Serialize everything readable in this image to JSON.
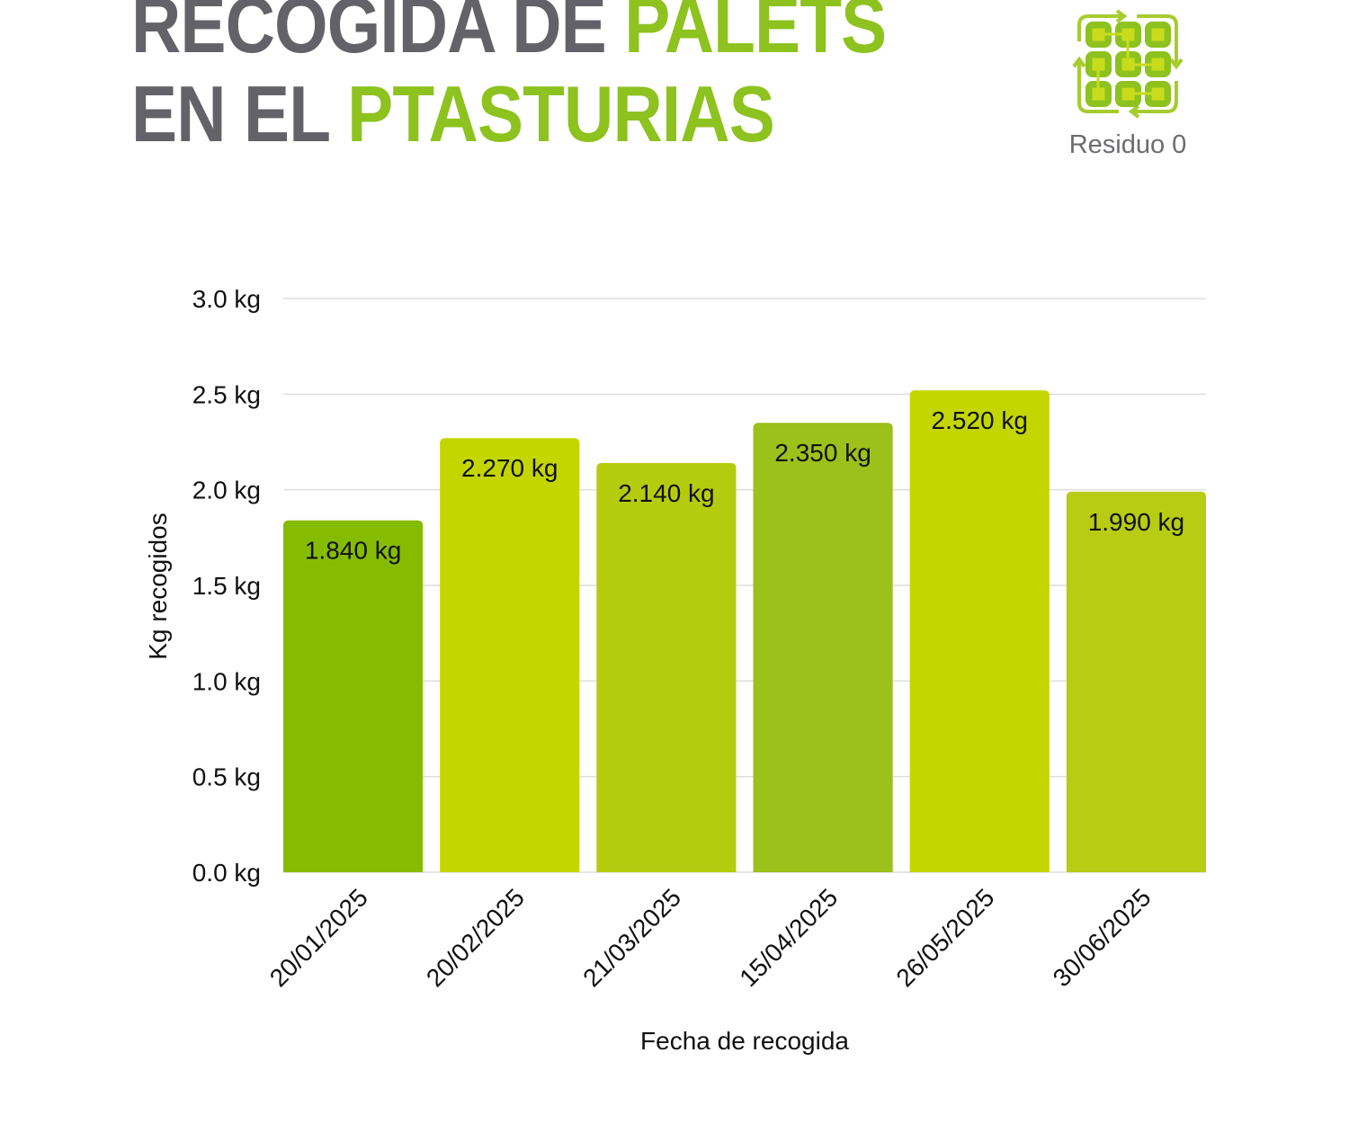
{
  "header": {
    "title_line1_gray": "RECOGIDA DE ",
    "title_line1_green": "PALETS",
    "title_line2_gray": "EN EL ",
    "title_line2_green": "PTASTURIAS",
    "logo_text": "Residuo 0"
  },
  "colors": {
    "gray": "#626268",
    "green": "#8dc21f",
    "bars": [
      "#86bc00",
      "#c4d600",
      "#b5cc0e",
      "#9cc11a",
      "#c4d600",
      "#b7cc12"
    ]
  },
  "chart_data": {
    "type": "bar",
    "categories": [
      "20/01/2025",
      "20/02/2025",
      "21/03/2025",
      "15/04/2025",
      "26/05/2025",
      "30/06/2025"
    ],
    "values": [
      1.84,
      2.27,
      2.14,
      2.35,
      2.52,
      1.99
    ],
    "data_labels": [
      "1.840 kg",
      "2.270 kg",
      "2.140 kg",
      "2.350 kg",
      "2.520 kg",
      "1.990 kg"
    ],
    "xlabel": "Fecha de recogida",
    "ylabel": "Kg recogidos",
    "ylim": [
      0,
      3.0
    ],
    "yticks": [
      0,
      0.5,
      1.0,
      1.5,
      2.0,
      2.5,
      3.0
    ],
    "ytick_labels": [
      "0.0 kg",
      "0.5 kg",
      "1.0 kg",
      "1.5 kg",
      "2.0 kg",
      "2.5 kg",
      "3.0 kg"
    ],
    "grid": true,
    "legend": "none"
  }
}
